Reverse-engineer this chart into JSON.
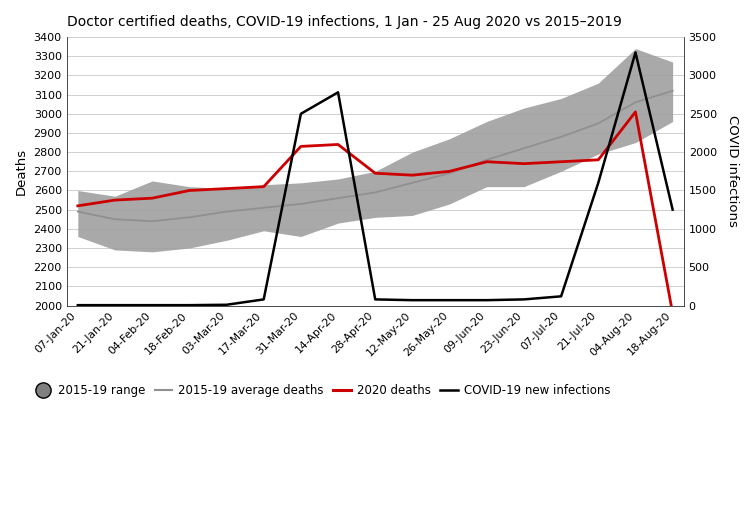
{
  "title": "Doctor certified deaths, COVID-19 infections, 1 Jan - 25 Aug 2020 vs 2015–2019",
  "ylabel_left": "Deaths",
  "ylabel_right": "COVID infections",
  "xlabels": [
    "07-Jan-20",
    "21-Jan-20",
    "04-Feb-20",
    "18-Feb-20",
    "03-Mar-20",
    "17-Mar-20",
    "31-Mar-20",
    "14-Apr-20",
    "28-Apr-20",
    "12-May-20",
    "26-May-20",
    "09-Jun-20",
    "23-Jun-20",
    "07-Jul-20",
    "21-Jul-20",
    "04-Aug-20",
    "18-Aug-20"
  ],
  "ylim_left": [
    2000,
    3400
  ],
  "ylim_right": [
    0,
    3500
  ],
  "yticks_left": [
    2000,
    2100,
    2200,
    2300,
    2400,
    2500,
    2600,
    2700,
    2800,
    2900,
    3000,
    3100,
    3200,
    3300,
    3400
  ],
  "yticks_right": [
    0,
    500,
    1000,
    1500,
    2000,
    2500,
    3000,
    3500
  ],
  "avg_deaths": [
    2490,
    2450,
    2440,
    2460,
    2490,
    2510,
    2530,
    2560,
    2590,
    2640,
    2690,
    2760,
    2820,
    2880,
    2950,
    3060,
    3120
  ],
  "range_upper": [
    2600,
    2570,
    2650,
    2620,
    2610,
    2630,
    2640,
    2660,
    2700,
    2800,
    2870,
    2960,
    3030,
    3080,
    3160,
    3340,
    3270
  ],
  "range_lower": [
    2360,
    2290,
    2280,
    2300,
    2340,
    2390,
    2360,
    2430,
    2460,
    2470,
    2530,
    2620,
    2620,
    2700,
    2790,
    2850,
    2960
  ],
  "deaths_2020": [
    2520,
    2550,
    2560,
    2600,
    2610,
    2620,
    2830,
    2840,
    2690,
    2680,
    2700,
    2750,
    2740,
    2750,
    2760,
    3010,
    1960
  ],
  "covid_infections": [
    5,
    5,
    5,
    5,
    10,
    80,
    2500,
    2780,
    80,
    70,
    70,
    70,
    80,
    120,
    1600,
    3300,
    1250
  ],
  "shade_color": "#a0a0a0",
  "avg_line_color": "#909090",
  "deaths_2020_color": "#cc0000",
  "covid_color": "#000000",
  "bg_color": "#ffffff",
  "legend_patch_color": "#808080"
}
